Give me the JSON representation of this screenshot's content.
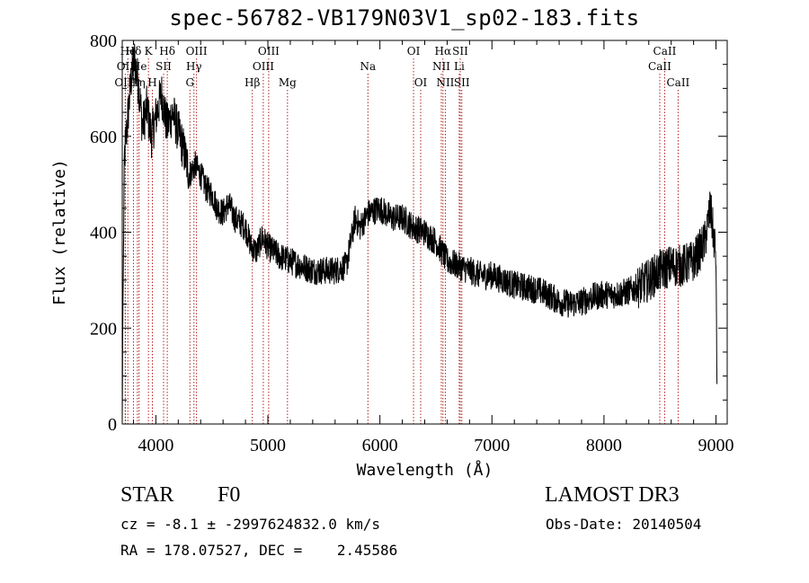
{
  "chart_data": {
    "type": "line",
    "title": "spec-56782-VB179N03V1_sp02-183.fits",
    "xlabel": "Wavelength (Å)",
    "ylabel": "Flux (relative)",
    "xlim": [
      3700,
      9100
    ],
    "ylim": [
      0,
      800
    ],
    "xticks": [
      4000,
      5000,
      6000,
      7000,
      8000,
      9000
    ],
    "yticks": [
      0,
      200,
      400,
      600,
      800
    ],
    "line_color": "#000000",
    "marker_color": "#b22222",
    "continuum": [
      [
        3700,
        0
      ],
      [
        3705,
        220
      ],
      [
        3720,
        560
      ],
      [
        3750,
        640
      ],
      [
        3780,
        720
      ],
      [
        3810,
        760
      ],
      [
        3850,
        700
      ],
      [
        3880,
        620
      ],
      [
        3920,
        660
      ],
      [
        3960,
        600
      ],
      [
        4000,
        640
      ],
      [
        4050,
        690
      ],
      [
        4100,
        620
      ],
      [
        4150,
        650
      ],
      [
        4200,
        610
      ],
      [
        4250,
        570
      ],
      [
        4300,
        520
      ],
      [
        4350,
        540
      ],
      [
        4400,
        520
      ],
      [
        4450,
        490
      ],
      [
        4500,
        480
      ],
      [
        4550,
        450
      ],
      [
        4600,
        440
      ],
      [
        4650,
        460
      ],
      [
        4700,
        430
      ],
      [
        4750,
        420
      ],
      [
        4800,
        410
      ],
      [
        4850,
        370
      ],
      [
        4900,
        360
      ],
      [
        4950,
        390
      ],
      [
        5000,
        370
      ],
      [
        5100,
        350
      ],
      [
        5200,
        340
      ],
      [
        5300,
        330
      ],
      [
        5400,
        320
      ],
      [
        5500,
        320
      ],
      [
        5600,
        320
      ],
      [
        5700,
        330
      ],
      [
        5740,
        380
      ],
      [
        5780,
        430
      ],
      [
        5820,
        410
      ],
      [
        5900,
        440
      ],
      [
        6000,
        450
      ],
      [
        6100,
        430
      ],
      [
        6200,
        430
      ],
      [
        6300,
        410
      ],
      [
        6400,
        400
      ],
      [
        6500,
        380
      ],
      [
        6600,
        340
      ],
      [
        6700,
        330
      ],
      [
        6800,
        320
      ],
      [
        6900,
        310
      ],
      [
        7000,
        310
      ],
      [
        7100,
        300
      ],
      [
        7200,
        290
      ],
      [
        7300,
        285
      ],
      [
        7400,
        280
      ],
      [
        7500,
        270
      ],
      [
        7600,
        255
      ],
      [
        7700,
        250
      ],
      [
        7800,
        255
      ],
      [
        7900,
        265
      ],
      [
        8000,
        270
      ],
      [
        8100,
        270
      ],
      [
        8200,
        275
      ],
      [
        8300,
        285
      ],
      [
        8400,
        300
      ],
      [
        8500,
        320
      ],
      [
        8600,
        330
      ],
      [
        8700,
        330
      ],
      [
        8800,
        340
      ],
      [
        8900,
        380
      ],
      [
        8950,
        450
      ],
      [
        9000,
        350
      ],
      [
        9010,
        40
      ]
    ],
    "noise_amplitude": 30,
    "lines": [
      {
        "label": "Hϵ",
        "x": 3750,
        "row": 1
      },
      {
        "label": "OII",
        "x": 3727,
        "row": 2
      },
      {
        "label": "OIII",
        "x": 3727,
        "row": 3
      },
      {
        "label": "Hδ",
        "x": 3800,
        "row": 1
      },
      {
        "label": "He",
        "x": 3850,
        "row": 2
      },
      {
        "label": "Hη",
        "x": 3835,
        "row": 3
      },
      {
        "label": "K",
        "x": 3934,
        "row": 1
      },
      {
        "label": "H",
        "x": 3969,
        "row": 3
      },
      {
        "label": "SII",
        "x": 4069,
        "row": 2
      },
      {
        "label": "Hδ",
        "x": 4102,
        "row": 1
      },
      {
        "label": "OIII",
        "x": 4363,
        "row": 1
      },
      {
        "label": "Hγ",
        "x": 4340,
        "row": 2
      },
      {
        "label": "G",
        "x": 4304,
        "row": 3
      },
      {
        "label": "Hβ",
        "x": 4861,
        "row": 3
      },
      {
        "label": "OIII",
        "x": 5007,
        "row": 1
      },
      {
        "label": "OIII",
        "x": 4959,
        "row": 2
      },
      {
        "label": "Mg",
        "x": 5175,
        "row": 3
      },
      {
        "label": "Na",
        "x": 5893,
        "row": 2
      },
      {
        "label": "OI",
        "x": 6300,
        "row": 1
      },
      {
        "label": "OI",
        "x": 6364,
        "row": 3
      },
      {
        "label": "Hα",
        "x": 6563,
        "row": 1
      },
      {
        "label": "NII",
        "x": 6548,
        "row": 2
      },
      {
        "label": "NII",
        "x": 6584,
        "row": 3
      },
      {
        "label": "SII",
        "x": 6717,
        "row": 1
      },
      {
        "label": "Li",
        "x": 6708,
        "row": 2
      },
      {
        "label": "SII",
        "x": 6731,
        "row": 3
      },
      {
        "label": "CaII",
        "x": 8542,
        "row": 1
      },
      {
        "label": "CaII",
        "x": 8498,
        "row": 2
      },
      {
        "label": "CaII",
        "x": 8662,
        "row": 3
      }
    ]
  },
  "info": {
    "object_class": "STAR",
    "subclass": "F0",
    "survey": "LAMOST DR3",
    "cz": "cz = -8.1 ± -2997624832.0 km/s",
    "obs_date": "Obs-Date: 20140504",
    "coords": "RA = 178.07527, DEC =    2.45586"
  }
}
